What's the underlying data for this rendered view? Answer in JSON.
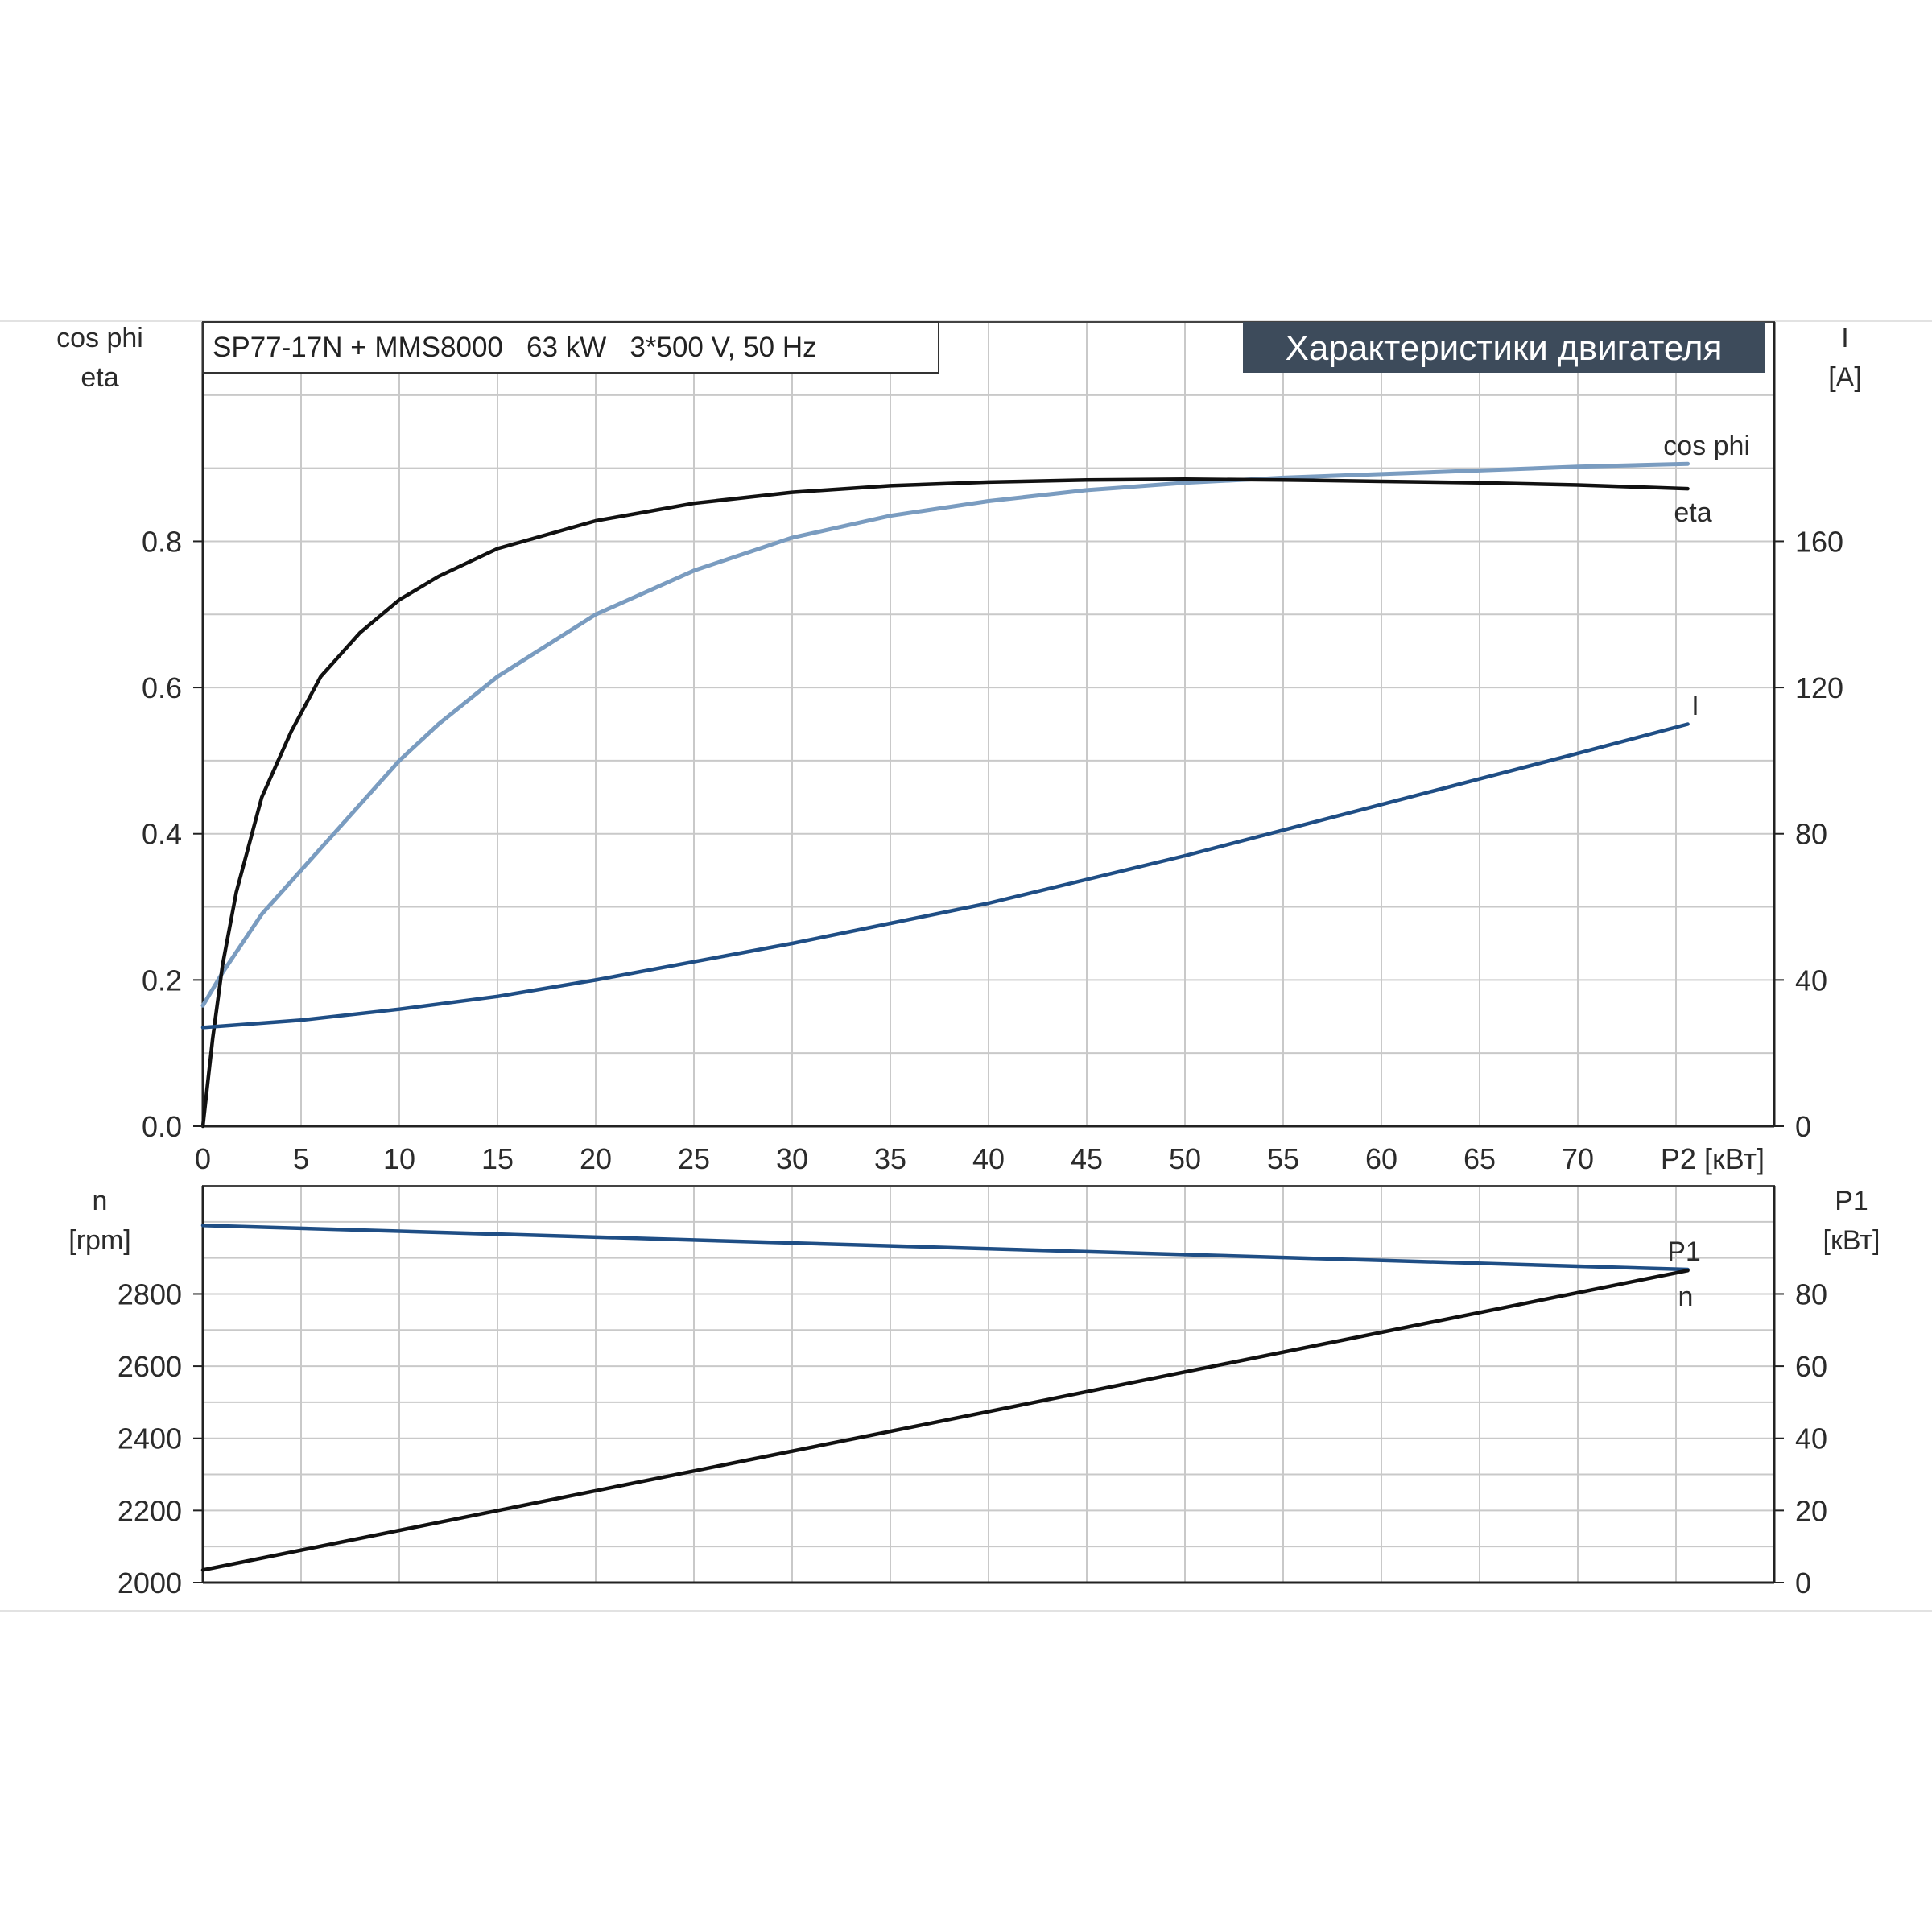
{
  "header": {
    "title": "SP77-17N + MMS8000   63 kW   3*500 V, 50 Hz",
    "badge": "Характеристики двигателя"
  },
  "colors": {
    "cos_phi": "#7a9cc0",
    "eta": "#111111",
    "current": "#1f4e85",
    "speed": "#1f4e85",
    "p1": "#111111",
    "badge_bg": "#3d4b5b"
  },
  "chart_data": [
    {
      "type": "line",
      "x": [
        0,
        1,
        2,
        3,
        4,
        5,
        6,
        8,
        10,
        12,
        15,
        20,
        25,
        30,
        35,
        40,
        45,
        50,
        55,
        60,
        65,
        70,
        75.6
      ],
      "xlim": [
        0,
        80
      ],
      "x_ticks": [
        "0",
        "5",
        "10",
        "15",
        "20",
        "25",
        "30",
        "35",
        "40",
        "45",
        "50",
        "55",
        "60",
        "65",
        "70"
      ],
      "xlabel": "P2 [кВт]",
      "left_axis": {
        "label_line1": "cos phi",
        "label_line2": "eta",
        "ylim": [
          0,
          1.1
        ],
        "ticks": [
          "0.0",
          "0.2",
          "0.4",
          "0.6",
          "0.8"
        ]
      },
      "right_axis": {
        "label_line1": "I",
        "label_line2": "[A]",
        "ylim": [
          0,
          220
        ],
        "ticks": [
          "0",
          "40",
          "80",
          "120",
          "160"
        ]
      },
      "grid": true,
      "series": [
        {
          "name": "cos phi",
          "axis": "left",
          "x": [
            0,
            1,
            2,
            3,
            5,
            8,
            10,
            12,
            15,
            20,
            25,
            30,
            35,
            40,
            45,
            50,
            55,
            60,
            65,
            70,
            75.6
          ],
          "values": [
            0.165,
            0.21,
            0.25,
            0.29,
            0.35,
            0.44,
            0.5,
            0.55,
            0.615,
            0.7,
            0.76,
            0.805,
            0.835,
            0.855,
            0.87,
            0.88,
            0.887,
            0.892,
            0.897,
            0.902,
            0.906
          ]
        },
        {
          "name": "eta",
          "axis": "left",
          "x": [
            0,
            0.5,
            1,
            1.7,
            3,
            4.5,
            6,
            8,
            10,
            12,
            15,
            20,
            25,
            30,
            35,
            40,
            45,
            50,
            55,
            60,
            65,
            70,
            75.6
          ],
          "values": [
            0.0,
            0.12,
            0.22,
            0.32,
            0.45,
            0.54,
            0.615,
            0.675,
            0.72,
            0.752,
            0.79,
            0.828,
            0.852,
            0.867,
            0.876,
            0.881,
            0.884,
            0.885,
            0.884,
            0.882,
            0.88,
            0.877,
            0.872
          ]
        },
        {
          "name": "I",
          "axis": "right",
          "x": [
            0,
            5,
            10,
            15,
            20,
            25,
            30,
            35,
            40,
            45,
            50,
            55,
            60,
            65,
            70,
            75.6
          ],
          "values": [
            27,
            29,
            32,
            35.5,
            40,
            45,
            50,
            55.5,
            61,
            67.5,
            74,
            81,
            88,
            95,
            102,
            110
          ]
        }
      ]
    },
    {
      "type": "line",
      "x": [
        0,
        75.6
      ],
      "xlim": [
        0,
        80
      ],
      "left_axis": {
        "label_line1": "n",
        "label_line2": "[rpm]",
        "ylim": [
          2000,
          3100
        ],
        "ticks": [
          "2000",
          "2200",
          "2400",
          "2600",
          "2800"
        ]
      },
      "right_axis": {
        "label_line1": "P1",
        "label_line2": "[кВт]",
        "ylim": [
          0,
          110
        ],
        "ticks": [
          "0",
          "20",
          "40",
          "60",
          "80"
        ]
      },
      "grid": true,
      "series": [
        {
          "name": "n",
          "axis": "left",
          "x": [
            0,
            75.6
          ],
          "values": [
            2990,
            2868
          ]
        },
        {
          "name": "P1",
          "axis": "right",
          "x": [
            0,
            75.6
          ],
          "values": [
            3.5,
            86.5
          ]
        }
      ]
    }
  ]
}
